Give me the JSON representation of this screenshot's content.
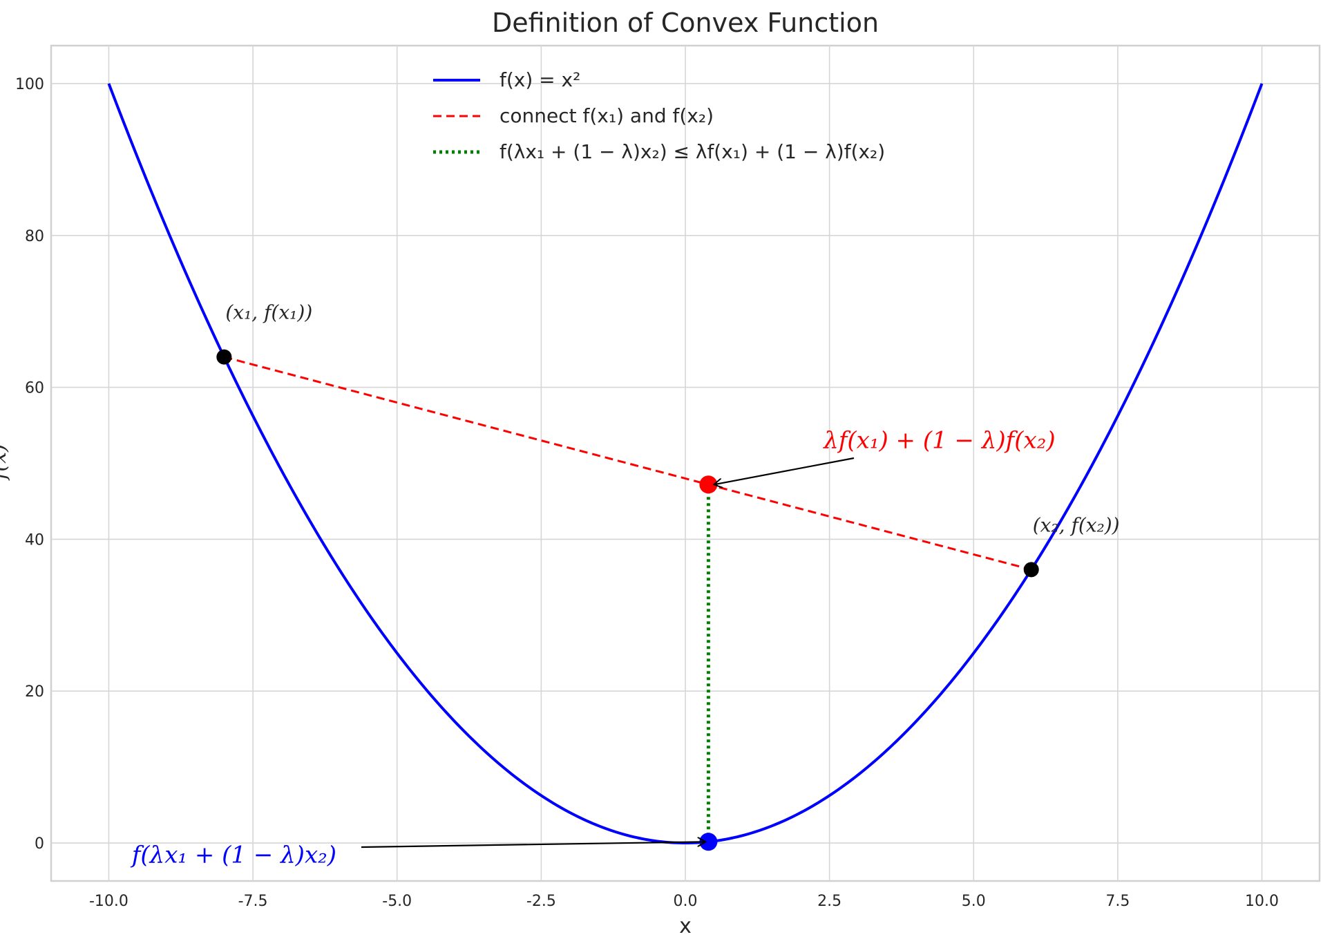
{
  "chart_data": {
    "type": "line",
    "title": "Definition of Convex Function",
    "xlabel": "x",
    "ylabel": "f(x)",
    "xlim": [
      -11,
      11
    ],
    "ylim": [
      -5,
      105
    ],
    "xticks": [
      -10.0,
      -7.5,
      -5.0,
      -2.5,
      0.0,
      2.5,
      5.0,
      7.5,
      10.0
    ],
    "xtick_labels": [
      "-10.0",
      "-7.5",
      "-5.0",
      "-2.5",
      "0.0",
      "2.5",
      "5.0",
      "7.5",
      "10.0"
    ],
    "yticks": [
      0,
      20,
      40,
      60,
      80,
      100
    ],
    "ytick_labels": [
      "0",
      "20",
      "40",
      "60",
      "80",
      "100"
    ],
    "grid": true,
    "legend_placement": "upper-center",
    "series": [
      {
        "name": "f(x) = x²",
        "function": "x^2",
        "x_range": [
          -10,
          10
        ],
        "color": "#0000ff",
        "style": "solid"
      },
      {
        "name": "connect f(x₁) and f(x₂)",
        "x": [
          -8,
          6
        ],
        "y": [
          64,
          36
        ],
        "color": "#ff0000",
        "style": "dashed"
      },
      {
        "name": "f(λx₁ + (1 − λ)x₂) ≤ λf(x₁) + (1 − λ)f(x₂)",
        "x": [
          0.4,
          0.4
        ],
        "y": [
          0.16,
          47.2
        ],
        "color": "#008000",
        "style": "dotted"
      }
    ],
    "points": [
      {
        "x": -8,
        "y": 64,
        "color": "#000000",
        "label": "(x₁, f(x₁))"
      },
      {
        "x": 6,
        "y": 36,
        "color": "#000000",
        "label": "(x₂, f(x₂))"
      },
      {
        "x": 0.4,
        "y": 47.2,
        "color": "#ff0000"
      },
      {
        "x": 0.4,
        "y": 0.16,
        "color": "#0000ff"
      }
    ],
    "annotations": [
      {
        "text": "λf(x₁) + (1 − λ)f(x₂)",
        "color": "#ff0000",
        "target": [
          0.4,
          47.2
        ],
        "text_at": [
          2.4,
          52
        ]
      },
      {
        "text": "f(λx₁ + (1 − λ)x₂)",
        "color": "#0000ff",
        "target": [
          0.4,
          0.16
        ],
        "text_at": [
          -9.6,
          -1.5
        ]
      }
    ]
  }
}
